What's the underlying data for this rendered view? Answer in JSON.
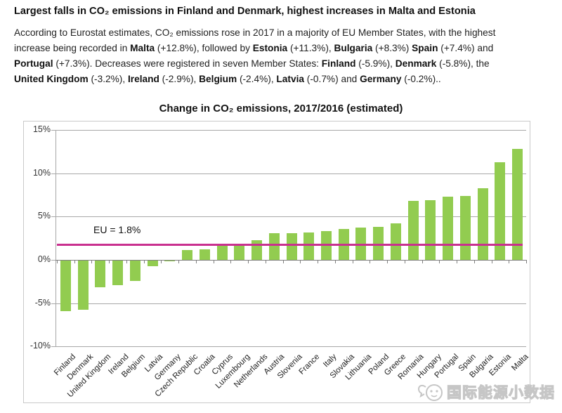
{
  "header": {
    "title": "Largest falls in CO₂ emissions in Finland and Denmark, highest increases in Malta and Estonia",
    "paragraph_lines": [
      [
        {
          "t": "According to Eurostat estimates, CO₂ emissions rose in 2017 in a majority of EU Member States, with the highest"
        }
      ],
      [
        {
          "t": "increase being recorded in "
        },
        {
          "t": "Malta",
          "b": 1
        },
        {
          "t": " (+12.8%), followed by "
        },
        {
          "t": "Estonia",
          "b": 1
        },
        {
          "t": " (+11.3%), "
        },
        {
          "t": "Bulgaria",
          "b": 1
        },
        {
          "t": " (+8.3%) "
        },
        {
          "t": "Spain",
          "b": 1
        },
        {
          "t": " (+7.4%) and"
        }
      ],
      [
        {
          "t": "Portugal",
          "b": 1
        },
        {
          "t": " (+7.3%). Decreases were registered in seven Member States: "
        },
        {
          "t": "Finland",
          "b": 1
        },
        {
          "t": " (-5.9%), "
        },
        {
          "t": "Denmark",
          "b": 1
        },
        {
          "t": " (-5.8%), the"
        }
      ],
      [
        {
          "t": "United Kingdom",
          "b": 1
        },
        {
          "t": " (-3.2%), "
        },
        {
          "t": "Ireland",
          "b": 1
        },
        {
          "t": " (-2.9%), "
        },
        {
          "t": "Belgium",
          "b": 1
        },
        {
          "t": " (-2.4%), "
        },
        {
          "t": "Latvia",
          "b": 1
        },
        {
          "t": " (-0.7%) and "
        },
        {
          "t": "Germany",
          "b": 1
        },
        {
          "t": " (-0.2%).."
        }
      ]
    ]
  },
  "chart_data": {
    "type": "bar",
    "title": "Change in CO₂ emissions, 2017/2016 (estimated)",
    "categories": [
      "Finland",
      "Denmark",
      "United Kingdom",
      "Ireland",
      "Belgium",
      "Latvia",
      "Germany",
      "Czech Republic",
      "Croatia",
      "Cyprus",
      "Luxembourg",
      "Netherlands",
      "Austria",
      "Slovenia",
      "France",
      "Italy",
      "Slovakia",
      "Lithuania",
      "Poland",
      "Greece",
      "Romania",
      "Hungary",
      "Portugal",
      "Spain",
      "Bulgaria",
      "Estonia",
      "Malta"
    ],
    "values": [
      -5.9,
      -5.8,
      -3.2,
      -2.9,
      -2.4,
      -0.7,
      -0.2,
      1.1,
      1.2,
      1.7,
      1.8,
      2.3,
      3.1,
      3.1,
      3.2,
      3.3,
      3.6,
      3.7,
      3.8,
      4.2,
      6.8,
      6.9,
      7.3,
      7.4,
      8.3,
      11.3,
      12.8
    ],
    "unit": "%",
    "ylim": [
      -10,
      15
    ],
    "y_ticks": [
      {
        "label": "15%",
        "value": 15
      },
      {
        "label": "10%",
        "value": 10
      },
      {
        "label": "5%",
        "value": 5
      },
      {
        "label": "0%",
        "value": 0
      },
      {
        "label": "-5%",
        "value": -5
      },
      {
        "label": "-10%",
        "value": -10
      }
    ],
    "reference_line": {
      "label": "EU = 1.8%",
      "value": 1.8
    },
    "colors": {
      "bar": "#92CC50",
      "reference_line": "#C9308F",
      "gridline": "#A8A8A8",
      "axis": "#7F7F7F",
      "box_border": "#C9C9C9",
      "tick_label": "#333333"
    },
    "grid": true,
    "legend": "none"
  },
  "watermark": {
    "text": "国际能源小数据",
    "logo": "speech-bubble-face-icon"
  }
}
